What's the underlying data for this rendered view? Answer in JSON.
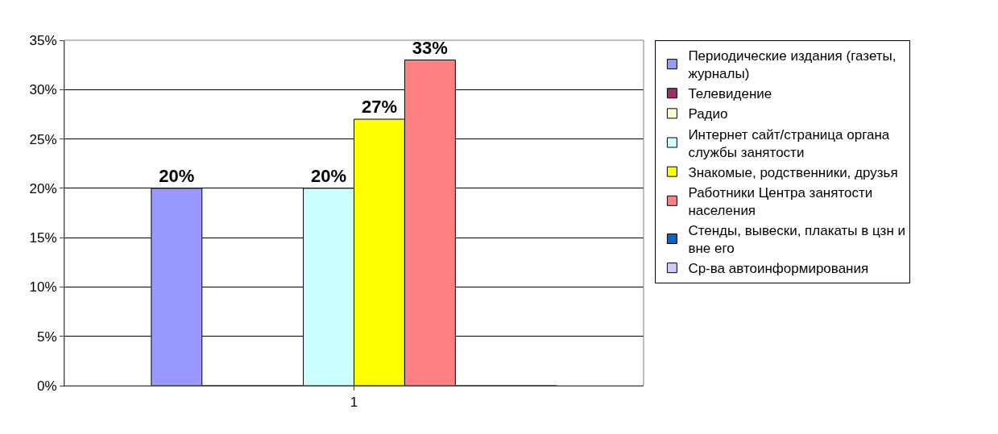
{
  "chart_data": {
    "type": "bar",
    "categories": [
      "1"
    ],
    "series": [
      {
        "name": "Периодические издания (газеты, журналы)",
        "color": "#9999ff",
        "values": [
          20
        ],
        "value_labels": [
          "20%"
        ]
      },
      {
        "name": "Телевидение",
        "color": "#993366",
        "values": [
          0
        ],
        "value_labels": [
          null
        ]
      },
      {
        "name": "Радио",
        "color": "#ffffcc",
        "values": [
          0
        ],
        "value_labels": [
          null
        ]
      },
      {
        "name": "Интернет сайт/страница органа службы занятости",
        "color": "#ccffff",
        "values": [
          20
        ],
        "value_labels": [
          "20%"
        ]
      },
      {
        "name": "Знакомые, родственники, друзья",
        "color": "#ffff00",
        "values": [
          27
        ],
        "value_labels": [
          "27%"
        ]
      },
      {
        "name": "Работники Центра занятости населения",
        "color": "#ff8080",
        "values": [
          33
        ],
        "value_labels": [
          "33%"
        ]
      },
      {
        "name": "Стенды, вывески, плакаты в цзн и вне его",
        "color": "#0066cc",
        "values": [
          0
        ],
        "value_labels": [
          null
        ]
      },
      {
        "name": "Ср-ва автоинформирования",
        "color": "#ccccff",
        "values": [
          0
        ],
        "value_labels": [
          null
        ]
      }
    ],
    "ylim": [
      0,
      35
    ],
    "yticks": [
      {
        "value": 0,
        "label": "0%"
      },
      {
        "value": 5,
        "label": "5%"
      },
      {
        "value": 10,
        "label": "10%"
      },
      {
        "value": 15,
        "label": "15%"
      },
      {
        "value": 20,
        "label": "20%"
      },
      {
        "value": 25,
        "label": "25%"
      },
      {
        "value": 30,
        "label": "30%"
      },
      {
        "value": 35,
        "label": "35%"
      }
    ],
    "grid": "y",
    "legend": "right"
  }
}
